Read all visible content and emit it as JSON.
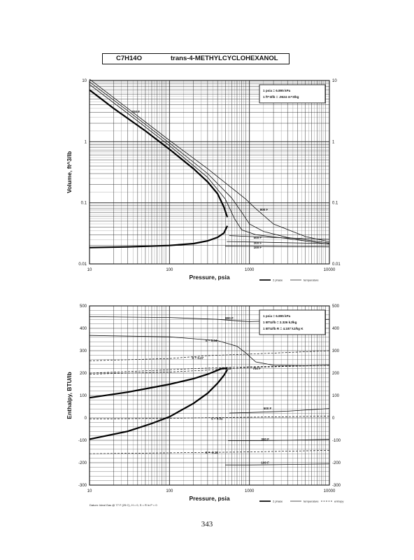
{
  "header": {
    "formula": "C7H14O",
    "compound": "trans-4-METHYLCYCLOHEXANOL"
  },
  "page_number": "343",
  "chart_data": [
    {
      "type": "line",
      "x_scale": "log",
      "y_scale": "log",
      "xlabel": "Pressure,  psia",
      "ylabel": "Volume,  ft^3/lb",
      "xlim": [
        10,
        10000
      ],
      "ylim": [
        0.01,
        10
      ],
      "x_ticks": [
        "10",
        "100",
        "1000",
        "10000"
      ],
      "y_ticks_left": [
        "0.01",
        "0.1",
        "1",
        "10"
      ],
      "y_ticks_right": [
        "0.01",
        "0.1",
        "1",
        "10"
      ],
      "grid": true,
      "conversion_box": [
        "1 psia = 6.895 kPa",
        "1 ft^3/lb = .0624 m^3/kg"
      ],
      "legend": [
        {
          "label": "2 phase",
          "style": "thick"
        },
        {
          "label": "temperature",
          "style": "thin"
        }
      ],
      "dome": {
        "liquid": {
          "x": [
            10,
            30,
            100,
            200,
            300,
            400,
            480,
            530
          ],
          "y": [
            0.0185,
            0.019,
            0.02,
            0.0215,
            0.0238,
            0.0272,
            0.032,
            0.042
          ]
        },
        "vapor": {
          "x": [
            10,
            20,
            50,
            100,
            200,
            300,
            400,
            480,
            530
          ],
          "y": [
            7.0,
            3.5,
            1.5,
            0.75,
            0.36,
            0.22,
            0.14,
            0.085,
            0.058
          ]
        }
      },
      "series": [
        {
          "name": "800 F",
          "label": "800 F",
          "x": [
            10,
            30,
            100,
            300,
            600,
            900,
            1200,
            2000,
            5000,
            10000
          ],
          "y": [
            10.5,
            3.5,
            1.05,
            0.36,
            0.175,
            0.115,
            0.08,
            0.045,
            0.028,
            0.023
          ]
        },
        {
          "name": "700 F",
          "label": "700 F",
          "x": [
            10,
            30,
            100,
            300,
            600,
            800,
            1000,
            1500,
            3000,
            10000
          ],
          "y": [
            9.5,
            3.2,
            0.95,
            0.3,
            0.12,
            0.07,
            0.045,
            0.034,
            0.027,
            0.022
          ]
        },
        {
          "name": "600 F",
          "label": "",
          "x": [
            10,
            30,
            100,
            300,
            500,
            650,
            800,
            1200,
            3000,
            10000
          ],
          "y": [
            8.6,
            2.9,
            0.86,
            0.26,
            0.115,
            0.055,
            0.036,
            0.03,
            0.026,
            0.021
          ]
        },
        {
          "name": "500 F",
          "label": "500 F",
          "x": [
            560,
            1000,
            3000,
            10000
          ],
          "y": [
            0.029,
            0.028,
            0.0265,
            0.0252
          ]
        },
        {
          "name": "300 F",
          "label": "300 F",
          "x": [
            520,
            1000,
            3000,
            10000
          ],
          "y": [
            0.0232,
            0.0228,
            0.0222,
            0.0215
          ]
        },
        {
          "name": "100 F",
          "label": "100 F",
          "x": [
            500,
            1000,
            3000,
            10000
          ],
          "y": [
            0.0195,
            0.0194,
            0.0192,
            0.019
          ]
        }
      ]
    },
    {
      "type": "line",
      "x_scale": "log",
      "y_scale": "linear",
      "xlabel": "Pressure,  psia",
      "ylabel": "Enthalpy, BTU/lb",
      "xlim": [
        10,
        10000
      ],
      "ylim": [
        -300,
        500
      ],
      "x_ticks": [
        "10",
        "100",
        "1000",
        "10000"
      ],
      "y_ticks_left": [
        "-300",
        "-200",
        "-100",
        "0",
        "100",
        "200",
        "300",
        "400",
        "500"
      ],
      "y_ticks_right": [
        "-300",
        "-200",
        "-100",
        "0",
        "100",
        "200",
        "300",
        "400",
        "500"
      ],
      "grid": true,
      "conversion_box": [
        "1 psia = 6.895 kPa",
        "1 BTU/lb = 2.326 kJ/kg",
        "1 BTU/lb R = 4.187 kJ/kg K"
      ],
      "datum_note": "Datum: Ideal Gas @ 77 F (25 C), H = 0, S = R ln P = 0",
      "legend": [
        {
          "label": "2 phase",
          "style": "thick"
        },
        {
          "label": "temperature",
          "style": "thin"
        },
        {
          "label": "entropy",
          "style": "dashed"
        }
      ],
      "dome": {
        "vapor": {
          "x": [
            10,
            30,
            100,
            200,
            300,
            450,
            530
          ],
          "y": [
            90,
            115,
            150,
            175,
            195,
            220,
            222
          ]
        },
        "liquid": {
          "x": [
            10,
            30,
            60,
            100,
            200,
            300,
            400,
            480,
            530
          ],
          "y": [
            -95,
            -60,
            -25,
            5,
            65,
            110,
            155,
            190,
            215
          ]
        }
      },
      "series": [
        {
          "name": "800 F",
          "label": "800 F",
          "x": [
            10,
            100,
            400,
            800,
            1000,
            2000,
            5000,
            10000
          ],
          "y": [
            452,
            448,
            440,
            432,
            430,
            433,
            437,
            440
          ]
        },
        {
          "name": "700 F",
          "label": "700 F",
          "x": [
            10,
            100,
            400,
            700,
            900,
            1200,
            2000,
            5000,
            10000
          ],
          "y": [
            368,
            362,
            345,
            320,
            290,
            250,
            235,
            233,
            236
          ]
        },
        {
          "name": "500 F",
          "label": "500 F",
          "x": [
            560,
            1000,
            3000,
            10000
          ],
          "y": [
            22,
            24,
            30,
            42
          ]
        },
        {
          "name": "300 F",
          "label": "300 F",
          "x": [
            540,
            1000,
            3000,
            10000
          ],
          "y": [
            -102,
            -102,
            -100,
            -96
          ]
        },
        {
          "name": "100 F",
          "label": "100 F",
          "x": [
            500,
            1000,
            3000,
            10000
          ],
          "y": [
            -210,
            -210,
            -208,
            -206
          ]
        },
        {
          "name": "S = 0.34",
          "label": "S = 0.34",
          "style": "dashed",
          "x": [
            10,
            100,
            300,
            1000,
            3000,
            10000
          ],
          "y": [
            255,
            265,
            278,
            285,
            292,
            300
          ]
        },
        {
          "name": "S = 0.27",
          "label": "S = 0.27",
          "style": "dashed",
          "x": [
            10,
            50,
            200,
            500,
            1000,
            10000
          ],
          "y": [
            200,
            210,
            220,
            225,
            228,
            235
          ]
        },
        {
          "name": "S = 0.22",
          "label": "S = 0.22",
          "style": "dashed",
          "x": [
            10,
            100,
            300,
            600,
            1000,
            10000
          ],
          "y": [
            195,
            205,
            213,
            220,
            225,
            235
          ]
        },
        {
          "name": "S = 0.02",
          "label": "S = 0.02",
          "style": "dashed",
          "x": [
            10,
            100,
            300,
            1000,
            10000
          ],
          "y": [
            -5,
            -2,
            1,
            3,
            8
          ]
        },
        {
          "name": "S = -0.18",
          "label": "S = -0.18",
          "style": "dashed",
          "x": [
            10,
            100,
            300,
            1000,
            10000
          ],
          "y": [
            -160,
            -156,
            -154,
            -152,
            -145
          ]
        }
      ],
      "labels": [
        {
          "text": "800 F",
          "x": 500,
          "y": 440
        },
        {
          "text": "S = 0.34",
          "x": 280,
          "y": 340
        },
        {
          "text": "S = 0.27",
          "x": 190,
          "y": 262
        },
        {
          "text": "S = 0.22",
          "x": 420,
          "y": 215
        },
        {
          "text": "700 F",
          "x": 1100,
          "y": 215
        },
        {
          "text": "500 F",
          "x": 1500,
          "y": 38
        },
        {
          "text": "S = 0.02",
          "x": 330,
          "y": -8
        },
        {
          "text": "300 F",
          "x": 1400,
          "y": -100
        },
        {
          "text": "S = -0.18",
          "x": 280,
          "y": -160
        },
        {
          "text": "100 F",
          "x": 1400,
          "y": -205
        }
      ]
    }
  ]
}
